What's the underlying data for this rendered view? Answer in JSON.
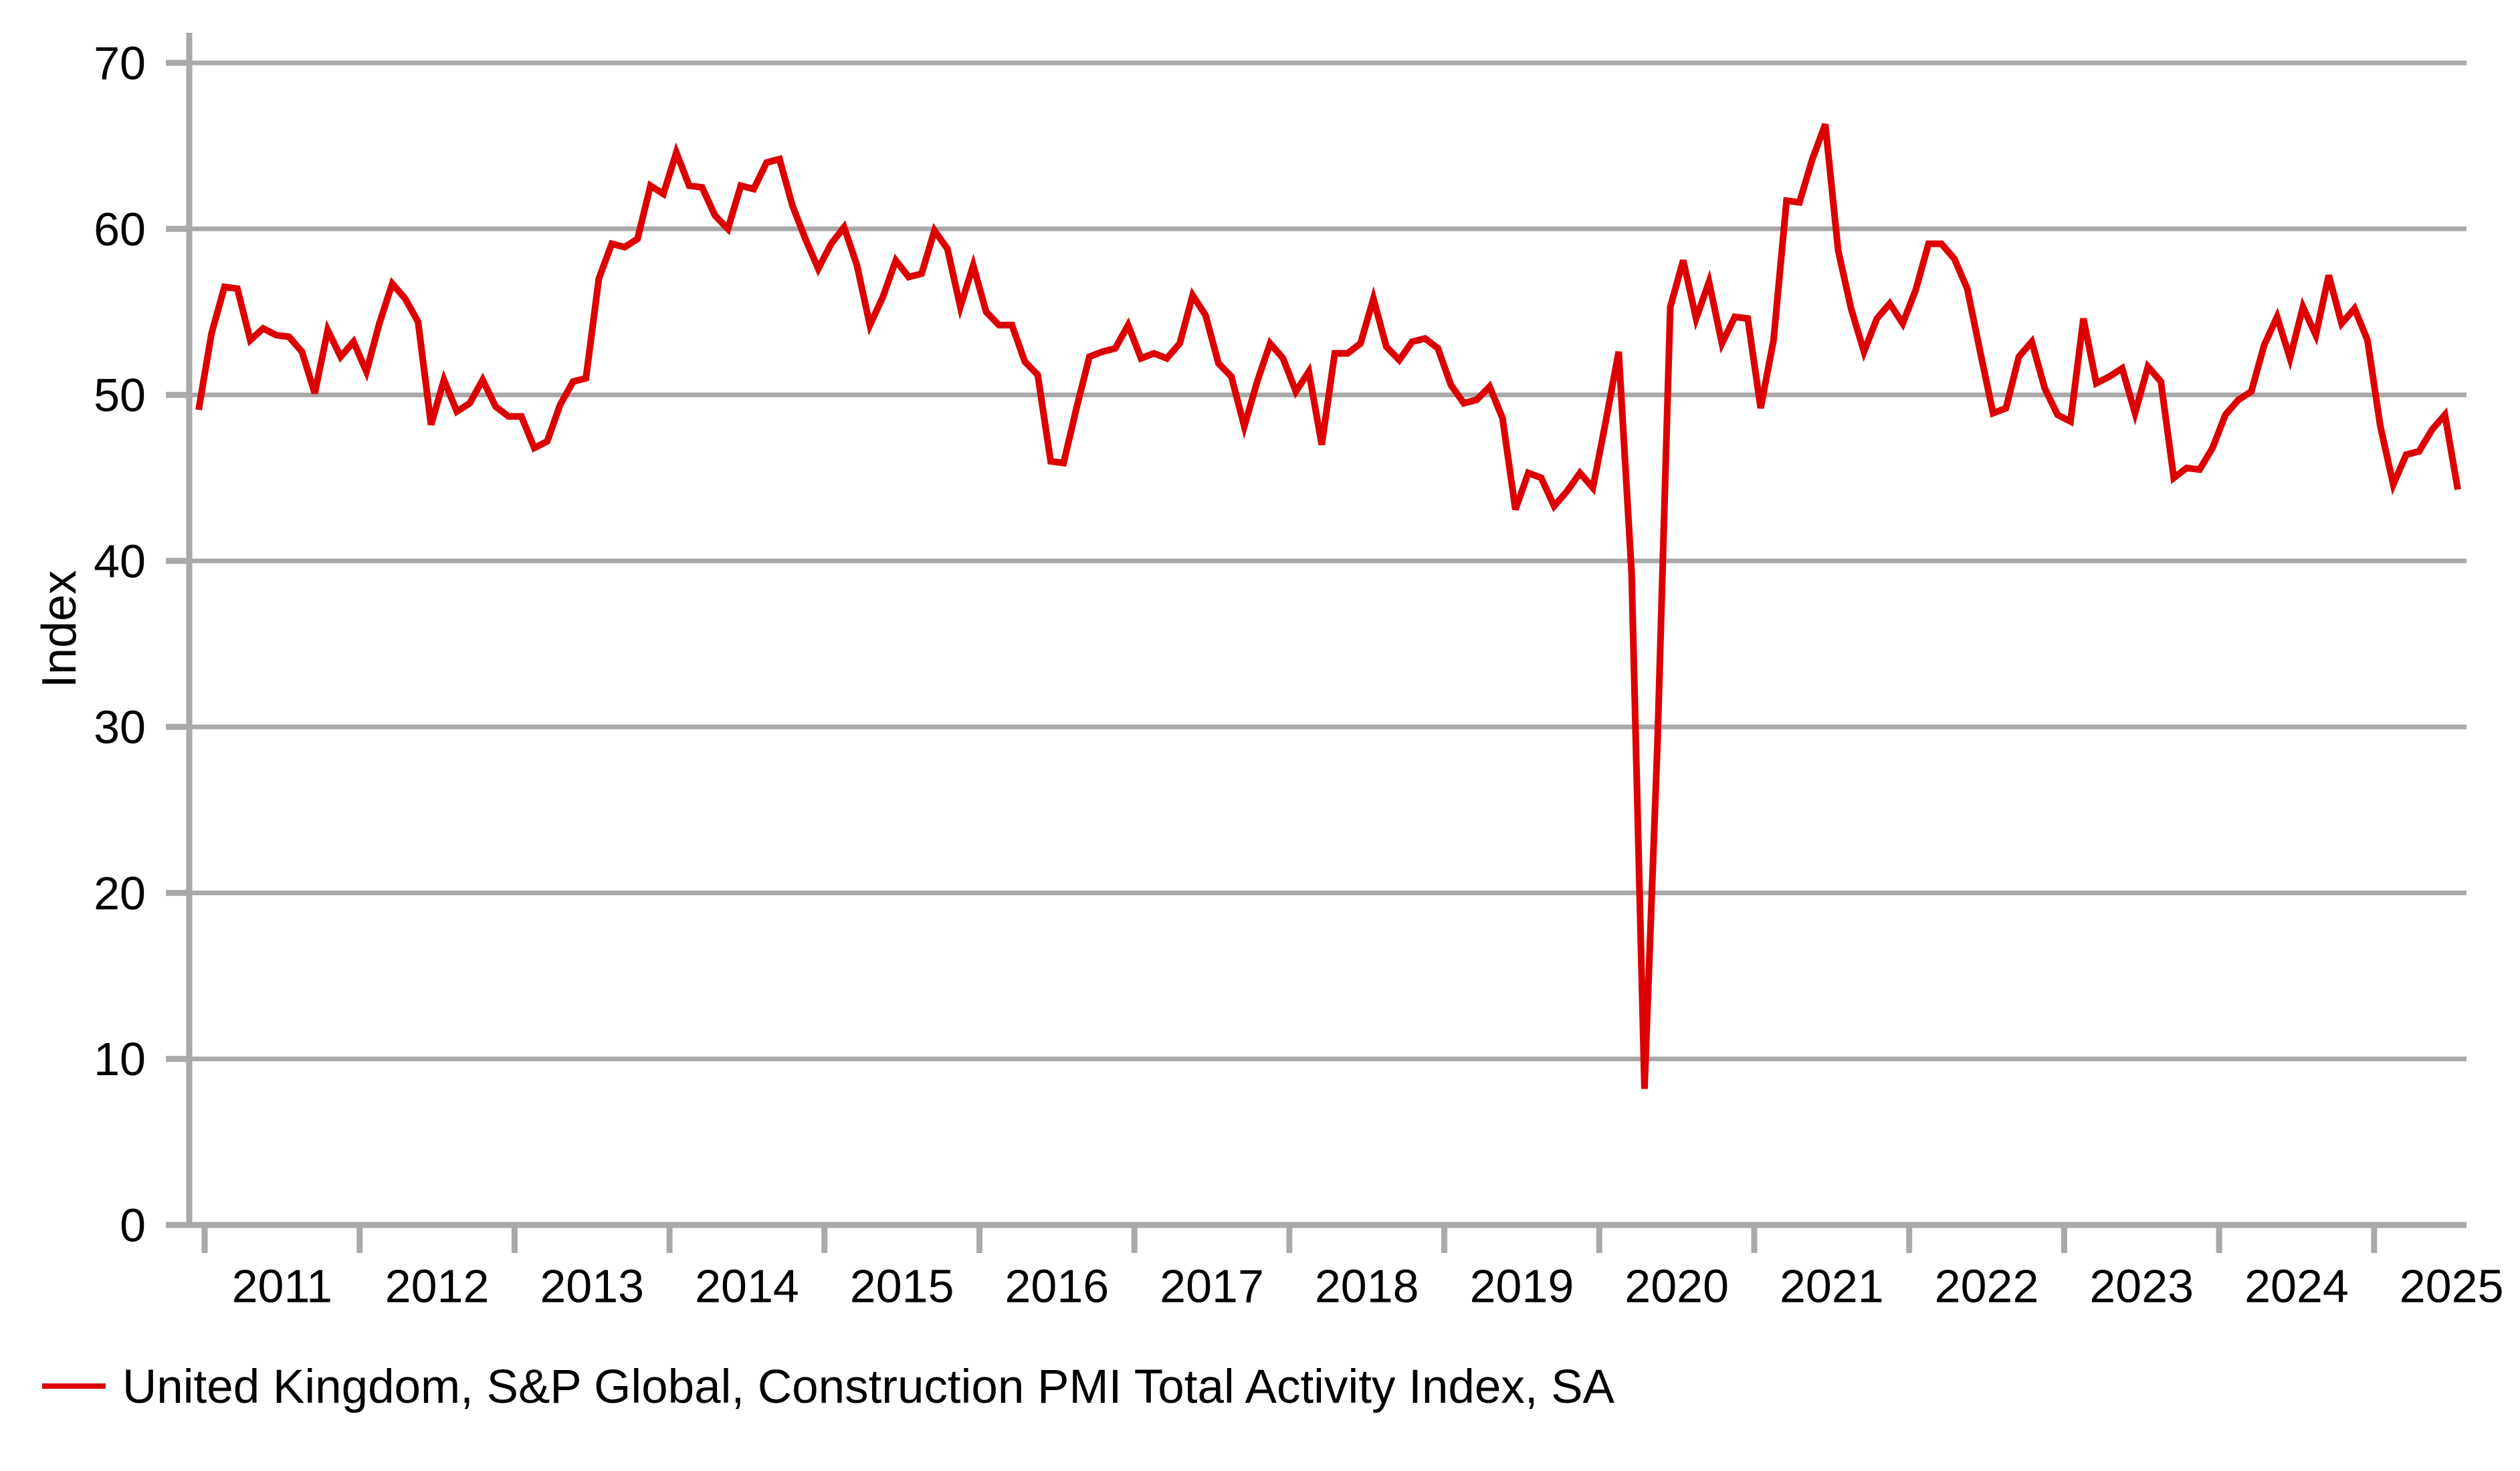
{
  "chart_data": {
    "type": "line",
    "title": "",
    "ylabel": "Index",
    "xlabel": "",
    "grid": "horizontal",
    "legend_position": "bottom-left",
    "ylim": [
      0,
      72
    ],
    "yticks": [
      0,
      10,
      20,
      30,
      40,
      50,
      60,
      70
    ],
    "x_year_labels": [
      "2011",
      "2012",
      "2013",
      "2014",
      "2015",
      "2016",
      "2017",
      "2018",
      "2019",
      "2020",
      "2021",
      "2022",
      "2023",
      "2024",
      "2025"
    ],
    "frequency": "monthly",
    "x_start_month": "2010-12",
    "x_end_month": "2025-07",
    "series": [
      {
        "name": "United Kingdom, S&P Global, Construction PMI Total Activity Index, SA",
        "color": "#DD0000",
        "values": [
          49.1,
          53.7,
          56.5,
          56.4,
          53.3,
          54.0,
          53.6,
          53.5,
          52.6,
          50.1,
          53.9,
          52.3,
          53.2,
          51.4,
          54.3,
          56.7,
          55.8,
          54.4,
          48.2,
          50.9,
          49.0,
          49.5,
          50.9,
          49.3,
          48.7,
          48.7,
          46.8,
          47.2,
          49.4,
          50.8,
          51.0,
          57.0,
          59.1,
          58.9,
          59.4,
          62.6,
          62.1,
          64.6,
          62.6,
          62.5,
          60.8,
          60.0,
          62.6,
          62.4,
          64.0,
          64.2,
          61.4,
          59.4,
          57.6,
          59.1,
          60.1,
          57.8,
          54.2,
          55.9,
          58.1,
          57.1,
          57.3,
          59.9,
          58.8,
          55.3,
          57.8,
          55.0,
          54.2,
          54.2,
          52.0,
          51.2,
          46.0,
          45.9,
          49.2,
          52.3,
          52.6,
          52.8,
          54.2,
          52.2,
          52.5,
          52.2,
          53.1,
          56.0,
          54.8,
          51.9,
          51.1,
          48.1,
          50.8,
          53.1,
          52.2,
          50.2,
          51.4,
          47.0,
          52.5,
          52.5,
          53.1,
          55.8,
          52.9,
          52.1,
          53.2,
          53.4,
          52.8,
          50.6,
          49.5,
          49.7,
          50.5,
          48.6,
          43.1,
          45.3,
          45.0,
          43.3,
          44.2,
          45.3,
          44.4,
          48.4,
          52.6,
          39.3,
          8.2,
          28.9,
          55.3,
          58.1,
          54.6,
          56.8,
          53.1,
          54.7,
          54.6,
          49.2,
          53.3,
          61.7,
          61.6,
          64.2,
          66.3,
          58.7,
          55.2,
          52.6,
          54.6,
          55.5,
          54.3,
          56.3,
          59.1,
          59.1,
          58.2,
          56.4,
          52.6,
          48.9,
          49.2,
          52.3,
          53.2,
          50.4,
          48.8,
          48.4,
          54.6,
          50.7,
          51.1,
          51.6,
          48.9,
          51.7,
          50.8,
          45.0,
          45.6,
          45.5,
          46.8,
          48.8,
          49.7,
          50.2,
          53.0,
          54.7,
          52.2,
          55.3,
          53.6,
          57.2,
          54.3,
          55.2,
          53.3,
          48.1,
          44.6,
          46.4,
          46.6,
          47.9,
          48.8,
          44.3
        ]
      }
    ]
  },
  "legend": {
    "label": "United Kingdom, S&P Global, Construction PMI Total Activity Index, SA"
  },
  "colors": {
    "line": "#DD0000",
    "grid": "#A9A9A9",
    "axis": "#A9A9A9",
    "text": "#000000",
    "background": "#FFFFFF"
  }
}
